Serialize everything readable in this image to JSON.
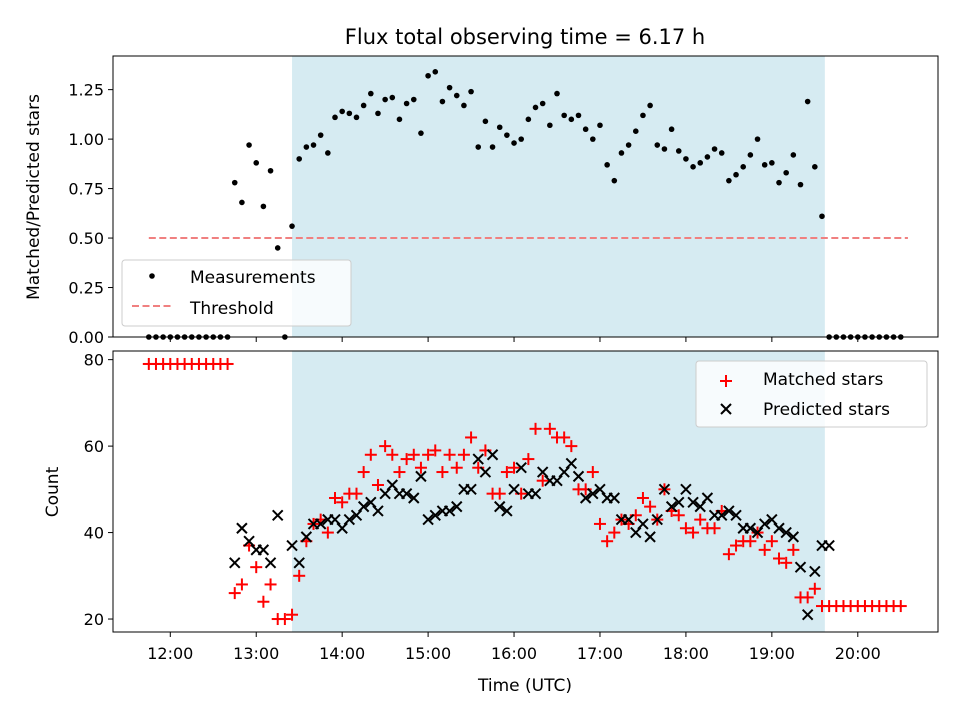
{
  "colors": {
    "shade": "#add8e6",
    "measurement": "#000000",
    "threshold": "#f08080",
    "matched": "#ff0000",
    "predicted": "#000000"
  },
  "chart_data": [
    {
      "type": "scatter",
      "title": "Flux total observing time = 6.17 h",
      "xlabel": "",
      "ylabel": "Matched/Predicted stars",
      "ylim": [
        0,
        1.42
      ],
      "yticks": [
        0,
        0.25,
        0.5,
        0.75,
        1.0,
        1.25
      ],
      "ytick_labels": [
        "0.00",
        "0.25",
        "0.50",
        "0.75",
        "1.00",
        "1.25"
      ],
      "shaded_span": [
        "13:25",
        "19:37"
      ],
      "legend_position": "lower-left",
      "threshold": {
        "name": "Threshold",
        "y": 0.5,
        "x": [
          "11:45",
          "20:35"
        ]
      },
      "series": [
        {
          "name": "Measurements",
          "marker": "dot",
          "x": [
            "11:45",
            "11:50",
            "11:55",
            "12:00",
            "12:05",
            "12:10",
            "12:15",
            "12:20",
            "12:25",
            "12:30",
            "12:35",
            "12:40",
            "12:45",
            "12:50",
            "12:55",
            "13:00",
            "13:05",
            "13:10",
            "13:15",
            "13:20",
            "13:25",
            "13:30",
            "13:35",
            "13:40",
            "13:45",
            "13:50",
            "13:55",
            "14:00",
            "14:05",
            "14:10",
            "14:15",
            "14:20",
            "14:25",
            "14:30",
            "14:35",
            "14:40",
            "14:45",
            "14:50",
            "14:55",
            "15:00",
            "15:05",
            "15:10",
            "15:15",
            "15:20",
            "15:25",
            "15:30",
            "15:35",
            "15:40",
            "15:45",
            "15:50",
            "15:55",
            "16:00",
            "16:05",
            "16:10",
            "16:15",
            "16:20",
            "16:25",
            "16:30",
            "16:35",
            "16:40",
            "16:45",
            "16:50",
            "16:55",
            "17:00",
            "17:05",
            "17:10",
            "17:15",
            "17:20",
            "17:25",
            "17:30",
            "17:35",
            "17:40",
            "17:45",
            "17:50",
            "17:55",
            "18:00",
            "18:05",
            "18:10",
            "18:15",
            "18:20",
            "18:25",
            "18:30",
            "18:35",
            "18:40",
            "18:45",
            "18:50",
            "18:55",
            "19:00",
            "19:05",
            "19:10",
            "19:15",
            "19:20",
            "19:25",
            "19:30",
            "19:35",
            "19:40",
            "19:45",
            "19:50",
            "19:55",
            "20:00",
            "20:05",
            "20:10",
            "20:15",
            "20:20",
            "20:25",
            "20:30"
          ],
          "y": [
            0,
            0,
            0,
            0,
            0,
            0,
            0,
            0,
            0,
            0,
            0,
            0,
            0.78,
            0.68,
            0.97,
            0.88,
            0.66,
            0.84,
            0.45,
            0,
            0.56,
            0.9,
            0.96,
            0.97,
            1.02,
            0.93,
            1.11,
            1.14,
            1.13,
            1.11,
            1.17,
            1.23,
            1.13,
            1.2,
            1.21,
            1.1,
            1.18,
            1.2,
            1.03,
            1.32,
            1.34,
            1.19,
            1.26,
            1.22,
            1.17,
            1.24,
            0.96,
            1.09,
            0.96,
            1.06,
            1.02,
            0.98,
            1.0,
            1.1,
            1.16,
            1.18,
            1.07,
            1.23,
            1.12,
            1.1,
            1.12,
            1.05,
            1.0,
            1.07,
            0.87,
            0.79,
            0.93,
            0.97,
            1.04,
            1.12,
            1.17,
            0.97,
            0.95,
            1.05,
            0.94,
            0.9,
            0.86,
            0.88,
            0.91,
            0.95,
            0.93,
            0.79,
            0.82,
            0.86,
            0.92,
            1.0,
            0.87,
            0.88,
            0.78,
            0.83,
            0.92,
            0.77,
            1.19,
            0.86,
            0.61,
            0,
            0,
            0,
            0,
            0,
            0,
            0,
            0,
            0,
            0,
            0
          ]
        }
      ]
    },
    {
      "type": "scatter",
      "title": "",
      "xlabel": "Time (UTC)",
      "ylabel": "Count",
      "ylim": [
        17,
        82
      ],
      "yticks": [
        20,
        40,
        60,
        80
      ],
      "xlim": [
        "11:20",
        "20:56"
      ],
      "xticks": [
        "12:00",
        "13:00",
        "14:00",
        "15:00",
        "16:00",
        "17:00",
        "18:00",
        "19:00",
        "20:00"
      ],
      "shaded_span": [
        "13:25",
        "19:37"
      ],
      "legend_position": "upper-right",
      "series": [
        {
          "name": "Matched stars",
          "marker": "plus",
          "x": [
            "11:45",
            "11:50",
            "11:55",
            "12:00",
            "12:05",
            "12:10",
            "12:15",
            "12:20",
            "12:25",
            "12:30",
            "12:35",
            "12:40",
            "12:45",
            "12:50",
            "12:55",
            "13:00",
            "13:05",
            "13:10",
            "13:15",
            "13:20",
            "13:25",
            "13:30",
            "13:35",
            "13:40",
            "13:45",
            "13:50",
            "13:55",
            "14:00",
            "14:05",
            "14:10",
            "14:15",
            "14:20",
            "14:25",
            "14:30",
            "14:35",
            "14:40",
            "14:45",
            "14:50",
            "14:55",
            "15:00",
            "15:05",
            "15:10",
            "15:15",
            "15:20",
            "15:25",
            "15:30",
            "15:35",
            "15:40",
            "15:45",
            "15:50",
            "15:55",
            "16:00",
            "16:05",
            "16:10",
            "16:15",
            "16:20",
            "16:25",
            "16:30",
            "16:35",
            "16:40",
            "16:45",
            "16:50",
            "16:55",
            "17:00",
            "17:05",
            "17:10",
            "17:15",
            "17:20",
            "17:25",
            "17:30",
            "17:35",
            "17:40",
            "17:45",
            "17:50",
            "17:55",
            "18:00",
            "18:05",
            "18:10",
            "18:15",
            "18:20",
            "18:25",
            "18:30",
            "18:35",
            "18:40",
            "18:45",
            "18:50",
            "18:55",
            "19:00",
            "19:05",
            "19:10",
            "19:15",
            "19:20",
            "19:25",
            "19:30",
            "19:35",
            "19:40",
            "19:45",
            "19:50",
            "19:55",
            "20:00",
            "20:05",
            "20:10",
            "20:15",
            "20:20",
            "20:25",
            "20:30"
          ],
          "y": [
            79,
            79,
            79,
            79,
            79,
            79,
            79,
            79,
            79,
            79,
            79,
            79,
            26,
            28,
            37,
            32,
            24,
            28,
            20,
            20,
            21,
            30,
            38,
            42,
            43,
            40,
            48,
            47,
            49,
            49,
            54,
            58,
            51,
            60,
            58,
            54,
            57,
            58,
            55,
            58,
            59,
            54,
            58,
            55,
            58,
            62,
            55,
            59,
            49,
            49,
            54,
            55,
            49,
            57,
            64,
            52,
            64,
            62,
            62,
            60,
            50,
            50,
            54,
            42,
            38,
            40,
            43,
            42,
            44,
            48,
            46,
            43,
            50,
            45,
            44,
            41,
            40,
            43,
            41,
            41,
            45,
            35,
            37,
            38,
            38,
            40,
            36,
            38,
            34,
            33,
            36,
            25,
            25,
            27,
            23,
            23,
            23,
            23,
            23,
            23,
            23,
            23,
            23,
            23,
            23,
            23
          ]
        },
        {
          "name": "Predicted stars",
          "marker": "x",
          "x": [
            "12:45",
            "12:50",
            "12:55",
            "13:00",
            "13:05",
            "13:10",
            "13:15",
            "13:25",
            "13:30",
            "13:35",
            "13:40",
            "13:45",
            "13:50",
            "13:55",
            "14:00",
            "14:05",
            "14:10",
            "14:15",
            "14:20",
            "14:25",
            "14:30",
            "14:35",
            "14:40",
            "14:45",
            "14:50",
            "14:55",
            "15:00",
            "15:05",
            "15:10",
            "15:15",
            "15:20",
            "15:25",
            "15:30",
            "15:35",
            "15:40",
            "15:45",
            "15:50",
            "15:55",
            "16:00",
            "16:05",
            "16:10",
            "16:15",
            "16:20",
            "16:25",
            "16:30",
            "16:35",
            "16:40",
            "16:45",
            "16:50",
            "16:55",
            "17:00",
            "17:05",
            "17:10",
            "17:15",
            "17:20",
            "17:25",
            "17:30",
            "17:35",
            "17:40",
            "17:45",
            "17:50",
            "17:55",
            "18:00",
            "18:05",
            "18:10",
            "18:15",
            "18:20",
            "18:25",
            "18:30",
            "18:35",
            "18:40",
            "18:45",
            "18:50",
            "18:55",
            "19:00",
            "19:05",
            "19:10",
            "19:15",
            "19:20",
            "19:25",
            "19:30",
            "19:35",
            "19:40"
          ],
          "y": [
            33,
            41,
            38,
            36,
            36,
            33,
            44,
            37,
            33,
            39,
            42,
            42,
            43,
            43,
            41,
            43,
            44,
            46,
            47,
            45,
            49,
            51,
            49,
            49,
            48,
            53,
            43,
            44,
            45,
            45,
            46,
            50,
            50,
            57,
            54,
            58,
            46,
            45,
            50,
            55,
            49,
            49,
            54,
            52,
            52,
            54,
            56,
            53,
            48,
            49,
            50,
            48,
            48,
            43,
            43,
            40,
            42,
            39,
            43,
            50,
            46,
            47,
            50,
            47,
            46,
            48,
            44,
            44,
            45,
            44,
            41,
            41,
            40,
            42,
            43,
            41,
            40,
            39,
            32,
            21,
            31,
            37,
            37
          ]
        }
      ]
    }
  ]
}
